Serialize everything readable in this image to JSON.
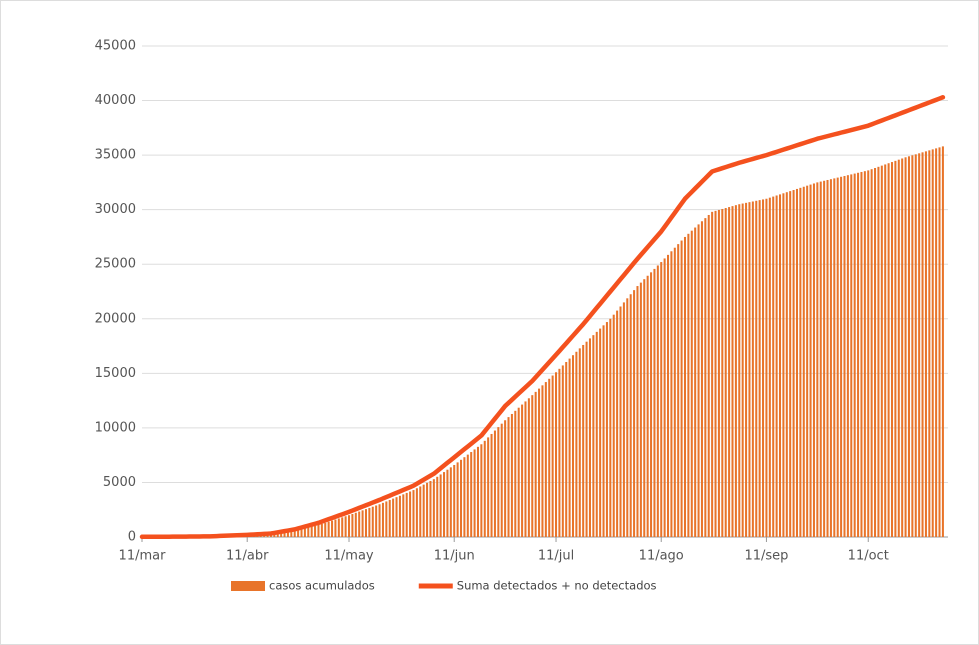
{
  "chart_data": {
    "type": "bar_line",
    "x": [
      0,
      1,
      2,
      3,
      4,
      5,
      6,
      7,
      8,
      9,
      10,
      11,
      12,
      13,
      14,
      15,
      16,
      17,
      18,
      19,
      20,
      21,
      22,
      23,
      24,
      25,
      26,
      27,
      28,
      29,
      30,
      31,
      32,
      33,
      34,
      35,
      36,
      37,
      38,
      39,
      40,
      41,
      42,
      43,
      44,
      45,
      46,
      47,
      48,
      49,
      50,
      51,
      52,
      53,
      54,
      55,
      56,
      57,
      58,
      59,
      60,
      61,
      62,
      63,
      64,
      65,
      66,
      67,
      68,
      69,
      70,
      71,
      72,
      73,
      74,
      75,
      76,
      77,
      78,
      79,
      80,
      81,
      82,
      83,
      84,
      85,
      86,
      87,
      88,
      89,
      90,
      91,
      92,
      93,
      94,
      95,
      96,
      97,
      98,
      99,
      100,
      101,
      102,
      103,
      104,
      105,
      106,
      107,
      108,
      109,
      110,
      111,
      112,
      113,
      114,
      115,
      116,
      117,
      118,
      119,
      120,
      121,
      122,
      123,
      124,
      125,
      126,
      127,
      128,
      129,
      130,
      131,
      132,
      133,
      134,
      135,
      136,
      137,
      138,
      139,
      140,
      141,
      142,
      143,
      144,
      145,
      146,
      147,
      148,
      149,
      150,
      151,
      152,
      153,
      154,
      155,
      156,
      157,
      158,
      159,
      160,
      161,
      162,
      163,
      164,
      165,
      166,
      167,
      168,
      169,
      170,
      171,
      172,
      173,
      174,
      175,
      176,
      177,
      178,
      179,
      180,
      181,
      182,
      183,
      184,
      185,
      186,
      187,
      188,
      189,
      190,
      191,
      192,
      193,
      194,
      195,
      196,
      197,
      198,
      199,
      200,
      201,
      202,
      203,
      204,
      205,
      206,
      207,
      208,
      209,
      210,
      211,
      212,
      213,
      214,
      215,
      216,
      217,
      218,
      219,
      220,
      221,
      222,
      223,
      224,
      225,
      226,
      227,
      228,
      229,
      230,
      231,
      232,
      233,
      234,
      235,
      236
    ],
    "xlim": [
      0,
      237.5
    ],
    "xticks": [
      {
        "value": 0,
        "label": "11/mar"
      },
      {
        "value": 31,
        "label": "11/abr"
      },
      {
        "value": 61,
        "label": "11/may"
      },
      {
        "value": 92,
        "label": "11/jun"
      },
      {
        "value": 122,
        "label": "11/jul"
      },
      {
        "value": 153,
        "label": "11/ago"
      },
      {
        "value": 184,
        "label": "11/sep"
      },
      {
        "value": 214,
        "label": "11/oct"
      }
    ],
    "ylim": [
      0,
      45000
    ],
    "yticks": [
      0,
      5000,
      10000,
      15000,
      20000,
      25000,
      30000,
      35000,
      40000,
      45000
    ],
    "grid": true,
    "legend": "bottom",
    "series": [
      {
        "name": "casos acumulados",
        "kind": "bar",
        "color": "#e8742a",
        "values": [
          0,
          1,
          2,
          3,
          4,
          5,
          6,
          7,
          8,
          9,
          10,
          12,
          14,
          16,
          18,
          20,
          22,
          24,
          26,
          28,
          30,
          41,
          52,
          63,
          74,
          85,
          96,
          107,
          118,
          129,
          140,
          150,
          164,
          179,
          193,
          207,
          221,
          236,
          250,
          300,
          350,
          400,
          450,
          500,
          550,
          600,
          671,
          743,
          814,
          886,
          957,
          1029,
          1100,
          1200,
          1300,
          1400,
          1500,
          1600,
          1700,
          1800,
          1900,
          2000,
          2111,
          2222,
          2333,
          2444,
          2556,
          2667,
          2778,
          2889,
          3000,
          3130,
          3260,
          3390,
          3520,
          3650,
          3780,
          3910,
          4040,
          4170,
          4300,
          4467,
          4633,
          4800,
          4967,
          5133,
          5300,
          5517,
          5733,
          5950,
          6167,
          6383,
          6600,
          6838,
          7075,
          7313,
          7550,
          7788,
          8025,
          8263,
          8500,
          8814,
          9129,
          9443,
          9757,
          10071,
          10386,
          10700,
          10988,
          11275,
          11563,
          11850,
          12138,
          12425,
          12713,
          13000,
          13300,
          13600,
          13900,
          14200,
          14500,
          14800,
          15100,
          15413,
          15725,
          16038,
          16350,
          16663,
          16975,
          17288,
          17600,
          17900,
          18200,
          18500,
          18800,
          19100,
          19400,
          19700,
          20000,
          20375,
          20750,
          21125,
          21500,
          21875,
          22250,
          22625,
          23000,
          23314,
          23629,
          23943,
          24257,
          24571,
          24886,
          25200,
          25529,
          25857,
          26186,
          26514,
          26843,
          27171,
          27500,
          27788,
          28075,
          28363,
          28650,
          28938,
          29225,
          29513,
          29800,
          29888,
          29975,
          30063,
          30150,
          30238,
          30325,
          30413,
          30500,
          30563,
          30625,
          30688,
          30750,
          30813,
          30875,
          30938,
          31000,
          31100,
          31200,
          31300,
          31400,
          31500,
          31600,
          31700,
          31800,
          31900,
          32000,
          32100,
          32200,
          32300,
          32400,
          32500,
          32573,
          32647,
          32720,
          32793,
          32867,
          32940,
          33013,
          33087,
          33160,
          33233,
          33307,
          33380,
          33453,
          33527,
          33600,
          33709,
          33818,
          33927,
          34036,
          34145,
          34255,
          34364,
          34473,
          34582,
          34691,
          34800,
          34891,
          34982,
          35073,
          35164,
          35255,
          35345,
          35436,
          35527,
          35618,
          35709,
          35800
        ]
      },
      {
        "name": "Suma detectados + no detectados",
        "kind": "line",
        "color": "#f4511e",
        "values": [
          20,
          21,
          22,
          23,
          24,
          25,
          26,
          27,
          28,
          29,
          30,
          33,
          36,
          39,
          42,
          45,
          48,
          51,
          54,
          57,
          60,
          73,
          85,
          98,
          111,
          124,
          136,
          149,
          162,
          175,
          187,
          200,
          217,
          234,
          251,
          269,
          286,
          303,
          320,
          374,
          429,
          483,
          537,
          591,
          646,
          700,
          786,
          871,
          957,
          1043,
          1129,
          1214,
          1300,
          1411,
          1522,
          1633,
          1744,
          1856,
          1967,
          2078,
          2189,
          2300,
          2422,
          2544,
          2667,
          2789,
          2911,
          3033,
          3156,
          3278,
          3400,
          3530,
          3660,
          3790,
          3920,
          4050,
          4180,
          4310,
          4440,
          4570,
          4700,
          4883,
          5067,
          5250,
          5433,
          5617,
          5800,
          6050,
          6300,
          6550,
          6800,
          7050,
          7300,
          7550,
          7800,
          8050,
          8300,
          8550,
          8800,
          9050,
          9300,
          9686,
          10071,
          10457,
          10843,
          11229,
          11614,
          12000,
          12288,
          12575,
          12863,
          13150,
          13438,
          13725,
          14013,
          14300,
          14643,
          14986,
          15329,
          15671,
          16014,
          16357,
          16700,
          17050,
          17400,
          17750,
          18100,
          18450,
          18800,
          19150,
          19500,
          19875,
          20250,
          20625,
          21000,
          21375,
          21750,
          22125,
          22500,
          22875,
          23250,
          23625,
          24000,
          24375,
          24750,
          25125,
          25500,
          25857,
          26214,
          26571,
          26929,
          27286,
          27643,
          28000,
          28429,
          28857,
          29286,
          29714,
          30143,
          30571,
          31000,
          31313,
          31625,
          31938,
          32250,
          32563,
          32875,
          33188,
          33500,
          33600,
          33700,
          33800,
          33900,
          34000,
          34100,
          34200,
          34300,
          34388,
          34475,
          34563,
          34650,
          34738,
          34825,
          34913,
          35000,
          35100,
          35200,
          35300,
          35400,
          35500,
          35600,
          35700,
          35800,
          35900,
          36000,
          36100,
          36200,
          36300,
          36400,
          36500,
          36580,
          36660,
          36740,
          36820,
          36900,
          36980,
          37060,
          37140,
          37220,
          37300,
          37380,
          37460,
          37540,
          37620,
          37700,
          37818,
          37936,
          38055,
          38173,
          38291,
          38409,
          38527,
          38645,
          38764,
          38882,
          39000,
          39118,
          39236,
          39355,
          39473,
          39591,
          39709,
          39827,
          39945,
          40064,
          40182,
          40300
        ]
      }
    ]
  }
}
